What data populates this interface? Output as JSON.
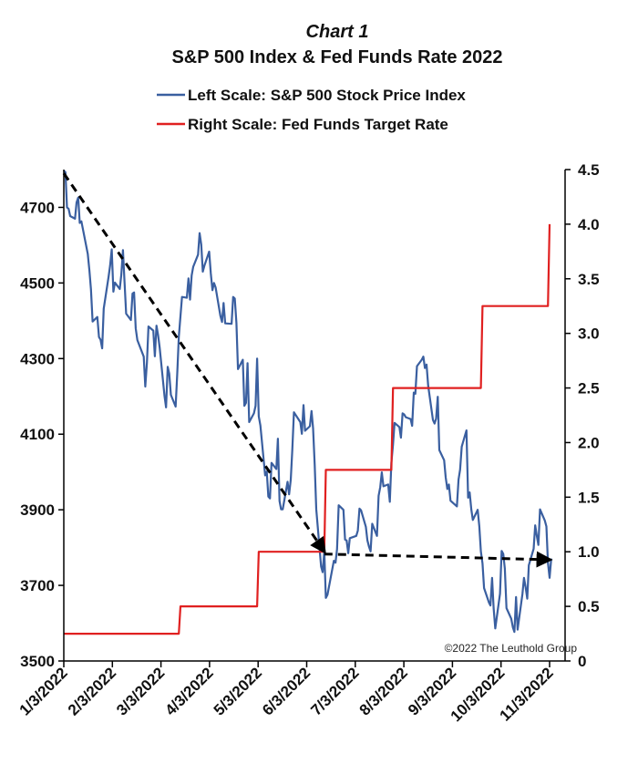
{
  "chart_data": {
    "type": "line",
    "title": "Chart 1",
    "subtitle": "S&P 500 Index & Fed Funds Rate 2022",
    "legend": {
      "placement": "top",
      "entries": [
        {
          "label": "Left Scale: S&P 500 Stock Price Index",
          "color": "#3a5fa0"
        },
        {
          "label": "Right Scale: Fed Funds Target Rate",
          "color": "#e02020"
        }
      ]
    },
    "x_tick_labels": [
      "1/3/2022",
      "2/3/2022",
      "3/3/2022",
      "4/3/2022",
      "5/3/2022",
      "6/3/2022",
      "7/3/2022",
      "8/3/2022",
      "9/3/2022",
      "10/3/2022",
      "11/3/2022"
    ],
    "x_range": [
      "2022-01-03",
      "2022-11-03"
    ],
    "y_left": {
      "min": 3500,
      "max": 4800,
      "ticks": [
        3500,
        3700,
        3900,
        4100,
        4300,
        4500,
        4700
      ]
    },
    "y_right": {
      "min": 0,
      "max": 4.5,
      "ticks": [
        "0",
        "0.5",
        "1.0",
        "1.5",
        "2.0",
        "2.5",
        "3.0",
        "3.5",
        "4.0",
        "4.5"
      ]
    },
    "grid": false,
    "annotation": "©2022 The Leuthold Group",
    "series": [
      {
        "name": "Left Scale: S&P 500 Stock Price Index",
        "axis": "left",
        "color": "#3a5fa0",
        "points": [
          [
            "2022-01-03",
            4797
          ],
          [
            "2022-01-04",
            4793
          ],
          [
            "2022-01-05",
            4700
          ],
          [
            "2022-01-06",
            4696
          ],
          [
            "2022-01-07",
            4677
          ],
          [
            "2022-01-10",
            4670
          ],
          [
            "2022-01-11",
            4713
          ],
          [
            "2022-01-12",
            4726
          ],
          [
            "2022-01-13",
            4659
          ],
          [
            "2022-01-14",
            4663
          ],
          [
            "2022-01-18",
            4577
          ],
          [
            "2022-01-19",
            4533
          ],
          [
            "2022-01-20",
            4483
          ],
          [
            "2022-01-21",
            4398
          ],
          [
            "2022-01-24",
            4410
          ],
          [
            "2022-01-25",
            4357
          ],
          [
            "2022-01-26",
            4350
          ],
          [
            "2022-01-27",
            4327
          ],
          [
            "2022-01-28",
            4432
          ],
          [
            "2022-01-31",
            4516
          ],
          [
            "2022-02-01",
            4546
          ],
          [
            "2022-02-02",
            4589
          ],
          [
            "2022-02-03",
            4477
          ],
          [
            "2022-02-04",
            4501
          ],
          [
            "2022-02-07",
            4484
          ],
          [
            "2022-02-08",
            4522
          ],
          [
            "2022-02-09",
            4587
          ],
          [
            "2022-02-10",
            4504
          ],
          [
            "2022-02-11",
            4419
          ],
          [
            "2022-02-14",
            4402
          ],
          [
            "2022-02-15",
            4472
          ],
          [
            "2022-02-16",
            4475
          ],
          [
            "2022-02-17",
            4380
          ],
          [
            "2022-02-18",
            4349
          ],
          [
            "2022-02-22",
            4305
          ],
          [
            "2022-02-23",
            4226
          ],
          [
            "2022-02-24",
            4289
          ],
          [
            "2022-02-25",
            4385
          ],
          [
            "2022-02-28",
            4374
          ],
          [
            "2022-03-01",
            4306
          ],
          [
            "2022-03-02",
            4387
          ],
          [
            "2022-03-03",
            4363
          ],
          [
            "2022-03-04",
            4329
          ],
          [
            "2022-03-07",
            4201
          ],
          [
            "2022-03-08",
            4171
          ],
          [
            "2022-03-09",
            4278
          ],
          [
            "2022-03-10",
            4260
          ],
          [
            "2022-03-11",
            4204
          ],
          [
            "2022-03-14",
            4173
          ],
          [
            "2022-03-15",
            4262
          ],
          [
            "2022-03-16",
            4358
          ],
          [
            "2022-03-17",
            4412
          ],
          [
            "2022-03-18",
            4463
          ],
          [
            "2022-03-21",
            4461
          ],
          [
            "2022-03-22",
            4512
          ],
          [
            "2022-03-23",
            4456
          ],
          [
            "2022-03-24",
            4520
          ],
          [
            "2022-03-25",
            4543
          ],
          [
            "2022-03-28",
            4575
          ],
          [
            "2022-03-29",
            4632
          ],
          [
            "2022-03-30",
            4602
          ],
          [
            "2022-03-31",
            4530
          ],
          [
            "2022-04-01",
            4546
          ],
          [
            "2022-04-04",
            4583
          ],
          [
            "2022-04-05",
            4525
          ],
          [
            "2022-04-06",
            4481
          ],
          [
            "2022-04-07",
            4500
          ],
          [
            "2022-04-08",
            4488
          ],
          [
            "2022-04-11",
            4413
          ],
          [
            "2022-04-12",
            4397
          ],
          [
            "2022-04-13",
            4447
          ],
          [
            "2022-04-14",
            4393
          ],
          [
            "2022-04-18",
            4392
          ],
          [
            "2022-04-19",
            4463
          ],
          [
            "2022-04-20",
            4459
          ],
          [
            "2022-04-21",
            4394
          ],
          [
            "2022-04-22",
            4272
          ],
          [
            "2022-04-25",
            4297
          ],
          [
            "2022-04-26",
            4175
          ],
          [
            "2022-04-27",
            4183
          ],
          [
            "2022-04-28",
            4288
          ],
          [
            "2022-04-29",
            4132
          ],
          [
            "2022-05-02",
            4155
          ],
          [
            "2022-05-03",
            4175
          ],
          [
            "2022-05-04",
            4300
          ],
          [
            "2022-05-05",
            4147
          ],
          [
            "2022-05-06",
            4123
          ],
          [
            "2022-05-09",
            3991
          ],
          [
            "2022-05-10",
            4001
          ],
          [
            "2022-05-11",
            3935
          ],
          [
            "2022-05-12",
            3930
          ],
          [
            "2022-05-13",
            4024
          ],
          [
            "2022-05-16",
            4008
          ],
          [
            "2022-05-17",
            4088
          ],
          [
            "2022-05-18",
            3923
          ],
          [
            "2022-05-19",
            3901
          ],
          [
            "2022-05-20",
            3901
          ],
          [
            "2022-05-23",
            3974
          ],
          [
            "2022-05-24",
            3941
          ],
          [
            "2022-05-25",
            3979
          ],
          [
            "2022-05-26",
            4058
          ],
          [
            "2022-05-27",
            4158
          ],
          [
            "2022-05-31",
            4132
          ],
          [
            "2022-06-01",
            4101
          ],
          [
            "2022-06-02",
            4177
          ],
          [
            "2022-06-03",
            4109
          ],
          [
            "2022-06-06",
            4121
          ],
          [
            "2022-06-07",
            4161
          ],
          [
            "2022-06-08",
            4116
          ],
          [
            "2022-06-09",
            4018
          ],
          [
            "2022-06-10",
            3901
          ],
          [
            "2022-06-13",
            3750
          ],
          [
            "2022-06-14",
            3735
          ],
          [
            "2022-06-15",
            3790
          ],
          [
            "2022-06-16",
            3667
          ],
          [
            "2022-06-17",
            3675
          ],
          [
            "2022-06-21",
            3765
          ],
          [
            "2022-06-22",
            3760
          ],
          [
            "2022-06-23",
            3796
          ],
          [
            "2022-06-24",
            3912
          ],
          [
            "2022-06-27",
            3900
          ],
          [
            "2022-06-28",
            3821
          ],
          [
            "2022-06-29",
            3819
          ],
          [
            "2022-06-30",
            3785
          ],
          [
            "2022-07-01",
            3825
          ],
          [
            "2022-07-05",
            3831
          ],
          [
            "2022-07-06",
            3845
          ],
          [
            "2022-07-07",
            3903
          ],
          [
            "2022-07-08",
            3899
          ],
          [
            "2022-07-11",
            3855
          ],
          [
            "2022-07-12",
            3819
          ],
          [
            "2022-07-13",
            3802
          ],
          [
            "2022-07-14",
            3790
          ],
          [
            "2022-07-15",
            3863
          ],
          [
            "2022-07-18",
            3831
          ],
          [
            "2022-07-19",
            3937
          ],
          [
            "2022-07-20",
            3960
          ],
          [
            "2022-07-21",
            3999
          ],
          [
            "2022-07-22",
            3962
          ],
          [
            "2022-07-25",
            3967
          ],
          [
            "2022-07-26",
            3921
          ],
          [
            "2022-07-27",
            4024
          ],
          [
            "2022-07-28",
            4072
          ],
          [
            "2022-07-29",
            4130
          ],
          [
            "2022-08-01",
            4119
          ],
          [
            "2022-08-02",
            4091
          ],
          [
            "2022-08-03",
            4155
          ],
          [
            "2022-08-04",
            4152
          ],
          [
            "2022-08-05",
            4145
          ],
          [
            "2022-08-08",
            4140
          ],
          [
            "2022-08-09",
            4122
          ],
          [
            "2022-08-10",
            4210
          ],
          [
            "2022-08-11",
            4207
          ],
          [
            "2022-08-12",
            4280
          ],
          [
            "2022-08-15",
            4297
          ],
          [
            "2022-08-16",
            4305
          ],
          [
            "2022-08-17",
            4275
          ],
          [
            "2022-08-18",
            4284
          ],
          [
            "2022-08-19",
            4228
          ],
          [
            "2022-08-22",
            4138
          ],
          [
            "2022-08-23",
            4128
          ],
          [
            "2022-08-24",
            4141
          ],
          [
            "2022-08-25",
            4199
          ],
          [
            "2022-08-26",
            4058
          ],
          [
            "2022-08-29",
            4031
          ],
          [
            "2022-08-30",
            3986
          ],
          [
            "2022-08-31",
            3955
          ],
          [
            "2022-09-01",
            3967
          ],
          [
            "2022-09-02",
            3924
          ],
          [
            "2022-09-06",
            3909
          ],
          [
            "2022-09-07",
            3980
          ],
          [
            "2022-09-08",
            4006
          ],
          [
            "2022-09-09",
            4067
          ],
          [
            "2022-09-12",
            4110
          ],
          [
            "2022-09-13",
            3932
          ],
          [
            "2022-09-14",
            3946
          ],
          [
            "2022-09-15",
            3901
          ],
          [
            "2022-09-16",
            3873
          ],
          [
            "2022-09-19",
            3900
          ],
          [
            "2022-09-20",
            3856
          ],
          [
            "2022-09-21",
            3790
          ],
          [
            "2022-09-22",
            3758
          ],
          [
            "2022-09-23",
            3693
          ],
          [
            "2022-09-26",
            3655
          ],
          [
            "2022-09-27",
            3647
          ],
          [
            "2022-09-28",
            3720
          ],
          [
            "2022-09-29",
            3640
          ],
          [
            "2022-09-30",
            3586
          ],
          [
            "2022-10-03",
            3678
          ],
          [
            "2022-10-04",
            3791
          ],
          [
            "2022-10-05",
            3783
          ],
          [
            "2022-10-06",
            3744
          ],
          [
            "2022-10-07",
            3640
          ],
          [
            "2022-10-10",
            3612
          ],
          [
            "2022-10-11",
            3589
          ],
          [
            "2022-10-12",
            3577
          ],
          [
            "2022-10-13",
            3669
          ],
          [
            "2022-10-14",
            3583
          ],
          [
            "2022-10-17",
            3677
          ],
          [
            "2022-10-18",
            3720
          ],
          [
            "2022-10-19",
            3695
          ],
          [
            "2022-10-20",
            3665
          ],
          [
            "2022-10-21",
            3753
          ],
          [
            "2022-10-24",
            3797
          ],
          [
            "2022-10-25",
            3859
          ],
          [
            "2022-10-26",
            3831
          ],
          [
            "2022-10-27",
            3807
          ],
          [
            "2022-10-28",
            3901
          ],
          [
            "2022-10-31",
            3872
          ],
          [
            "2022-11-01",
            3856
          ],
          [
            "2022-11-02",
            3760
          ],
          [
            "2022-11-03",
            3720
          ],
          [
            "2022-11-04",
            3771
          ]
        ]
      },
      {
        "name": "Right Scale: Fed Funds Target Rate",
        "axis": "right",
        "color": "#e02020",
        "points": [
          [
            "2022-01-03",
            0.25
          ],
          [
            "2022-03-16",
            0.25
          ],
          [
            "2022-03-17",
            0.5
          ],
          [
            "2022-05-04",
            0.5
          ],
          [
            "2022-05-05",
            1.0
          ],
          [
            "2022-06-15",
            1.0
          ],
          [
            "2022-06-16",
            1.75
          ],
          [
            "2022-07-27",
            1.75
          ],
          [
            "2022-07-28",
            2.5
          ],
          [
            "2022-09-21",
            2.5
          ],
          [
            "2022-09-22",
            3.25
          ],
          [
            "2022-11-02",
            3.25
          ],
          [
            "2022-11-03",
            4.0
          ]
        ]
      },
      {
        "name": "",
        "axis": "left",
        "color": "#000000",
        "dashed": true,
        "arrow": true,
        "points": [
          [
            "2022-01-03",
            4790
          ],
          [
            "2022-06-15",
            3790
          ]
        ]
      },
      {
        "name": "",
        "axis": "left",
        "color": "#000000",
        "dashed": true,
        "arrow": true,
        "points": [
          [
            "2022-06-15",
            3783
          ],
          [
            "2022-11-03",
            3768
          ]
        ]
      }
    ]
  }
}
